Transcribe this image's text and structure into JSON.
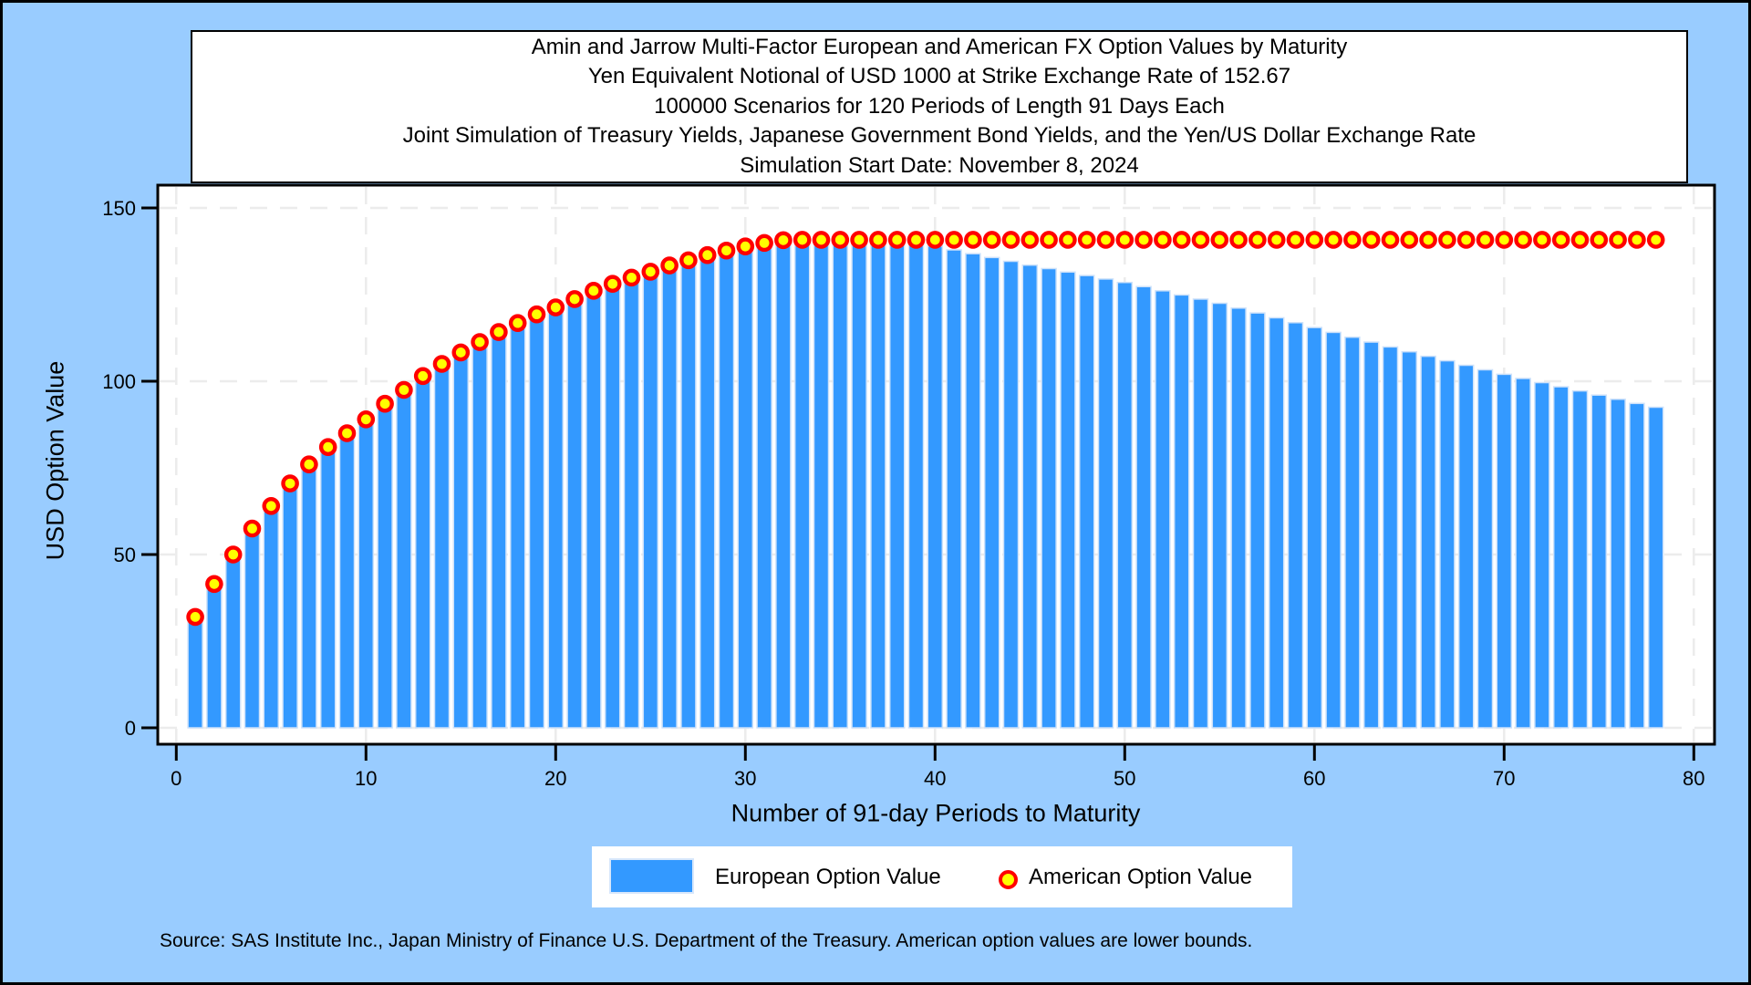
{
  "colors": {
    "page_background": "#99ccff",
    "plot_background": "#ffffff",
    "frame": "#000000",
    "gridline": "#ececec",
    "bar_fill": "#3399ff",
    "bar_edge": "#cde1fa",
    "marker_ring": "#ff0000",
    "marker_fill": "#ffff00"
  },
  "title_box": {
    "lines": [
      "Amin and Jarrow Multi-Factor European and American FX Option Values by Maturity",
      "Yen Equivalent Notional of USD 1000 at Strike Exchange Rate of 152.67",
      "100000 Scenarios for 120 Periods of Length 91 Days Each",
      "Joint Simulation of Treasury Yields, Japanese Government Bond Yields, and the Yen/US Dollar Exchange Rate",
      "Simulation Start Date: November 8, 2024"
    ]
  },
  "legend": {
    "position": "bottom",
    "items": [
      {
        "label": "European Option Value",
        "swatch": "bar",
        "color": "#3399ff"
      },
      {
        "label": "American Option Value",
        "swatch": "circle-marker",
        "ring_color": "#ff0000",
        "fill_color": "#ffff00"
      }
    ]
  },
  "footnote": {
    "text": "Source: SAS Institute Inc., Japan Ministry of Finance U.S. Department of the Treasury. American option values are lower bounds."
  },
  "chart_data": {
    "type": "bar",
    "title": "Amin and Jarrow Multi-Factor European and American FX Option Values by Maturity",
    "xlabel": "Number of 91-day Periods to Maturity",
    "ylabel": "USD Option Value",
    "x_ticks": [
      0,
      10,
      20,
      30,
      40,
      50,
      60,
      70,
      80
    ],
    "y_ticks": [
      0,
      50,
      100,
      150
    ],
    "xlim": [
      -1,
      81
    ],
    "ylim": [
      0,
      156.5
    ],
    "grid": true,
    "x": [
      1,
      2,
      3,
      4,
      5,
      6,
      7,
      8,
      9,
      10,
      11,
      12,
      13,
      14,
      15,
      16,
      17,
      18,
      19,
      20,
      21,
      22,
      23,
      24,
      25,
      26,
      27,
      28,
      29,
      30,
      31,
      32,
      33,
      34,
      35,
      36,
      37,
      38,
      39,
      40,
      41,
      42,
      43,
      44,
      45,
      46,
      47,
      48,
      49,
      50,
      51,
      52,
      53,
      54,
      55,
      56,
      57,
      58,
      59,
      60,
      61,
      62,
      63,
      64,
      65,
      66,
      67,
      68,
      69,
      70,
      71,
      72,
      73,
      74,
      75,
      76,
      77,
      78
    ],
    "series": [
      {
        "name": "European Option Value",
        "type": "bar",
        "values": [
          30.5,
          40,
          48.5,
          56,
          62.5,
          69,
          74.5,
          79.5,
          83.5,
          87.5,
          92,
          96,
          100,
          103.5,
          106.8,
          109.8,
          112.7,
          115.3,
          117.8,
          119.8,
          122.2,
          124.6,
          126.6,
          128.4,
          130.1,
          131.9,
          133.4,
          134.9,
          136.2,
          137.4,
          138.4,
          139.2,
          139.8,
          140.2,
          140.4,
          140.5,
          140.4,
          140.2,
          139.8,
          139,
          137.9,
          136.8,
          135.7,
          134.6,
          133.5,
          132.5,
          131.5,
          130.5,
          129.5,
          128.5,
          127.3,
          126.1,
          124.9,
          123.7,
          122.5,
          121.1,
          119.7,
          118.3,
          116.9,
          115.5,
          114.1,
          112.7,
          111.3,
          109.9,
          108.5,
          107.2,
          105.9,
          104.6,
          103.3,
          102,
          100.8,
          99.6,
          98.4,
          97.2,
          96,
          94.8,
          93.6,
          92.5
        ]
      },
      {
        "name": "American Option Value",
        "type": "scatter",
        "marker": "circle",
        "values": [
          32,
          41.5,
          50,
          57.5,
          64,
          70.5,
          76,
          81,
          85,
          89,
          93.5,
          97.5,
          101.5,
          105,
          108.3,
          111.3,
          114.2,
          116.8,
          119.3,
          121.3,
          123.7,
          126.1,
          128.1,
          129.9,
          131.6,
          133.4,
          134.9,
          136.4,
          137.7,
          138.9,
          139.9,
          140.7,
          140.8,
          140.8,
          140.8,
          140.8,
          140.8,
          140.8,
          140.8,
          140.8,
          140.8,
          140.8,
          140.8,
          140.8,
          140.8,
          140.8,
          140.8,
          140.8,
          140.8,
          140.8,
          140.8,
          140.8,
          140.8,
          140.8,
          140.8,
          140.8,
          140.8,
          140.8,
          140.8,
          140.8,
          140.8,
          140.8,
          140.8,
          140.8,
          140.8,
          140.8,
          140.8,
          140.8,
          140.8,
          140.8,
          140.8,
          140.8,
          140.8,
          140.8,
          140.8,
          140.8,
          140.8,
          140.8
        ]
      }
    ]
  }
}
